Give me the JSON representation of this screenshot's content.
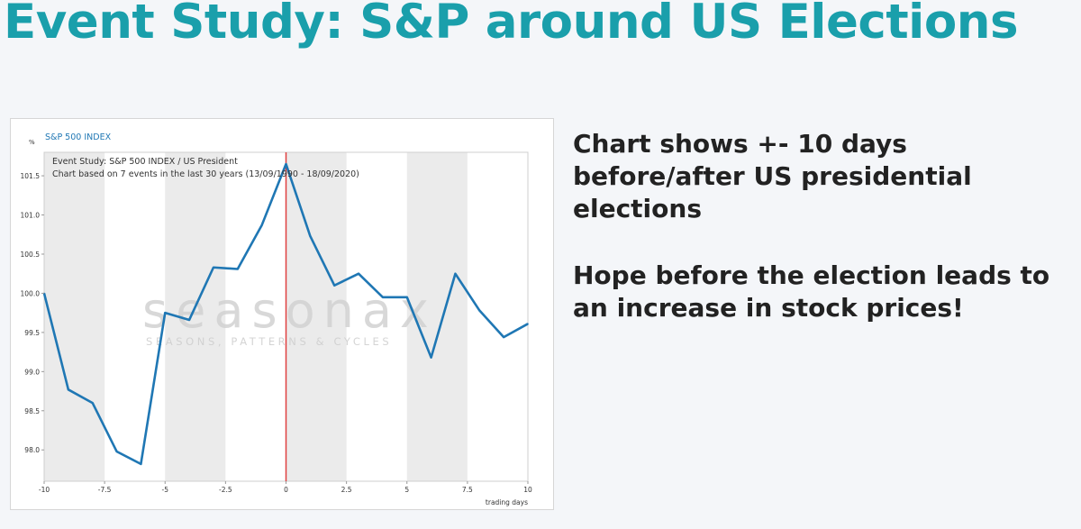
{
  "page": {
    "title": "Event Study: S&P around US Elections"
  },
  "bullets": [
    "Chart shows  +- 10 days before/after US presidential elections",
    "Hope before the election leads to an increase in stock prices!"
  ],
  "watermark": {
    "brand": "seasonax",
    "tagline": "SEASONS, PATTERNS & CYCLES"
  },
  "colors": {
    "title": "#1a9fab",
    "line": "#1f77b4",
    "event_line": "#e04040",
    "band": "#ebebeb"
  },
  "chart_data": {
    "type": "line",
    "index_label": "S&P 500 INDEX",
    "unit_label": "%",
    "annotation_line1": "Event Study: S&P 500 INDEX / US President",
    "annotation_line2": "Chart based on 7 events in the last 30 years (13/09/1990 - 18/09/2020)",
    "xlabel": "trading days",
    "ylabel": "%",
    "xlim": [
      -10,
      10
    ],
    "ylim": [
      97.6,
      101.8
    ],
    "x_ticks": [
      -10,
      -7.5,
      -5,
      -2.5,
      0,
      2.5,
      5,
      7.5,
      10
    ],
    "y_ticks": [
      98.0,
      98.5,
      99.0,
      99.5,
      100.0,
      100.5,
      101.0,
      101.5
    ],
    "event_x": 0,
    "shaded_bands": [
      [
        -10,
        -7.5
      ],
      [
        -5,
        -2.5
      ],
      [
        0,
        2.5
      ],
      [
        5,
        7.5
      ]
    ],
    "grid": false,
    "legend": "none",
    "series": [
      {
        "x": [
          -10,
          -9,
          -8,
          -7,
          -6,
          -5,
          -4,
          -3,
          -2,
          -1,
          0,
          1,
          2,
          3,
          4,
          5,
          6,
          7,
          8,
          9,
          10
        ],
        "values": [
          100.0,
          98.77,
          98.6,
          97.98,
          97.82,
          99.75,
          99.66,
          100.33,
          100.31,
          100.87,
          101.65,
          100.73,
          100.1,
          100.25,
          99.95,
          99.95,
          99.18,
          100.25,
          99.78,
          99.44,
          99.61
        ]
      }
    ]
  }
}
